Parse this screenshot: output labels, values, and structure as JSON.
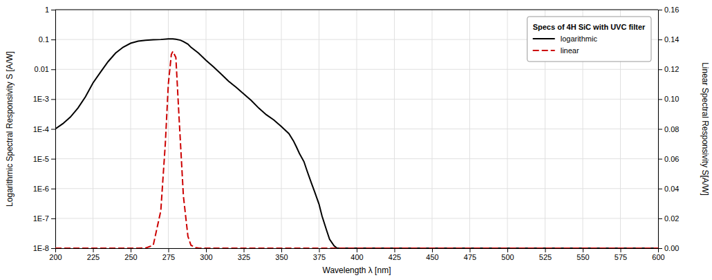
{
  "chart_data": {
    "type": "line",
    "xlabel": "Wavelength λ [nm]",
    "ylabel": "Logarithmic Spectral Responsivity S [A/W]",
    "y2label": "Linear Spectral Responsivity S[A/W]",
    "legend_title": "Specs of 4H SiC with UVC filter",
    "legend": "upper right",
    "log": "y",
    "grid": true,
    "xlim": [
      200,
      600
    ],
    "ylim": [
      1e-08,
      1
    ],
    "y2lim": [
      0.0,
      0.16
    ],
    "xticks": [
      200,
      225,
      250,
      275,
      300,
      325,
      350,
      375,
      400,
      425,
      450,
      475,
      500,
      525,
      550,
      575,
      600
    ],
    "yticks": [
      {
        "value": 1e-08,
        "label": "1E-8"
      },
      {
        "value": 1e-07,
        "label": "1E-7"
      },
      {
        "value": 1e-06,
        "label": "1E-6"
      },
      {
        "value": 1e-05,
        "label": "1E-5"
      },
      {
        "value": 0.0001,
        "label": "1E-4"
      },
      {
        "value": 0.001,
        "label": "1E-3"
      },
      0.01,
      0.1,
      1
    ],
    "y2ticks": [
      {
        "value": 0.0,
        "label": "0.00"
      },
      0.02,
      0.04,
      0.06,
      0.08,
      {
        "value": 0.1,
        "label": "0.10"
      },
      0.12,
      0.14,
      0.16
    ],
    "series": [
      {
        "name": "logarithmic",
        "color": "#000000",
        "line_style": "solid",
        "x": [
          200,
          205,
          210,
          215,
          220,
          225,
          230,
          235,
          240,
          245,
          250,
          255,
          260,
          265,
          270,
          275,
          278,
          280,
          283,
          285,
          288,
          290,
          295,
          300,
          305,
          310,
          315,
          320,
          325,
          330,
          335,
          340,
          345,
          350,
          355,
          358,
          360,
          362,
          365,
          367,
          370,
          372,
          375,
          377,
          380,
          382,
          385,
          387,
          390,
          395,
          400,
          420,
          450,
          500,
          550,
          600
        ],
        "values": [
          0.0001,
          0.00015,
          0.00025,
          0.0005,
          0.0012,
          0.0035,
          0.008,
          0.018,
          0.035,
          0.055,
          0.075,
          0.088,
          0.094,
          0.098,
          0.1,
          0.105,
          0.105,
          0.102,
          0.095,
          0.085,
          0.07,
          0.055,
          0.035,
          0.02,
          0.012,
          0.007,
          0.004,
          0.0025,
          0.0015,
          0.0009,
          0.0005,
          0.0003,
          0.0002,
          0.00012,
          7e-05,
          4e-05,
          2.5e-05,
          1.5e-05,
          8e-06,
          4e-06,
          1.5e-06,
          8e-07,
          3e-07,
          1.2e-07,
          4e-08,
          2e-08,
          1.2e-08,
          1e-08,
          1e-08,
          1e-08,
          1e-08,
          1e-08,
          1e-08,
          1e-08,
          1e-08,
          1e-08
        ]
      },
      {
        "name": "linear",
        "color": "#cc0000",
        "line_style": "dashed",
        "axis": "y2",
        "x": [
          200,
          210,
          220,
          225,
          230,
          235,
          240,
          245,
          250,
          255,
          260,
          265,
          270,
          273,
          275,
          277,
          278,
          280,
          282,
          285,
          288,
          290,
          293,
          295,
          298,
          300,
          305,
          310,
          320,
          340,
          600
        ],
        "values": [
          0.0,
          0.0,
          0.0,
          0.0,
          0.0,
          0.0,
          0.0,
          0.0,
          0.0,
          1e-05,
          0.0001,
          0.002,
          0.025,
          0.07,
          0.11,
          0.13,
          0.132,
          0.128,
          0.09,
          0.035,
          0.008,
          0.002,
          0.0004,
          0.0001,
          2e-05,
          5e-06,
          0.0,
          0.0,
          0.0,
          0.0,
          0.0
        ]
      }
    ]
  }
}
